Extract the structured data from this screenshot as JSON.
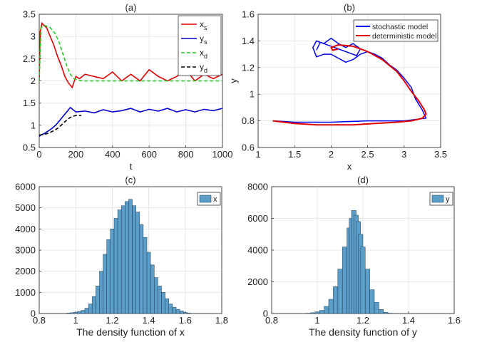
{
  "colors": {
    "xs": "#e00000",
    "ys": "#0000cc",
    "xd": "#22cc22",
    "yd": "#000000",
    "stochastic": "#0000ee",
    "deterministic": "#e00000",
    "bar_fill": "#5b9ec9",
    "bar_edge": "#1f3b55"
  },
  "chart_data": [
    {
      "type": "line",
      "panel": "(a)",
      "title": "(a)",
      "xlabel": "t",
      "ylabel": "",
      "xlim": [
        0,
        1000
      ],
      "ylim": [
        0.5,
        3.5
      ],
      "xticks": [
        "0",
        "200",
        "400",
        "600",
        "800",
        "1000"
      ],
      "yticks": [
        "0.5",
        "1",
        "1.5",
        "2",
        "2.5",
        "3",
        "3.5"
      ],
      "legend_position": "top-right",
      "series": [
        {
          "name": "x_s",
          "label_main": "x",
          "label_sub": "s",
          "style": "solid",
          "color_key": "xs",
          "x": [
            0,
            5,
            15,
            25,
            40,
            60,
            80,
            100,
            120,
            140,
            160,
            180,
            200,
            220,
            250,
            300,
            350,
            400,
            450,
            500,
            550,
            600,
            650,
            700,
            750,
            800,
            850,
            900,
            950,
            1000
          ],
          "y": [
            2.0,
            3.1,
            3.3,
            3.25,
            3.2,
            3.0,
            2.8,
            2.55,
            2.35,
            2.1,
            1.95,
            1.85,
            2.1,
            2.05,
            2.15,
            2.1,
            2.05,
            2.2,
            2.0,
            2.15,
            2.0,
            2.25,
            2.1,
            2.0,
            2.1,
            2.25,
            2.0,
            2.15,
            2.05,
            2.15
          ]
        },
        {
          "name": "y_s",
          "label_main": "y",
          "label_sub": "s",
          "style": "solid",
          "color_key": "ys",
          "x": [
            0,
            10,
            30,
            60,
            90,
            120,
            150,
            170,
            200,
            250,
            300,
            350,
            400,
            450,
            500,
            550,
            600,
            650,
            700,
            750,
            800,
            850,
            900,
            950,
            1000
          ],
          "y": [
            0.75,
            0.78,
            0.82,
            0.9,
            1.0,
            1.15,
            1.3,
            1.4,
            1.3,
            1.32,
            1.28,
            1.35,
            1.3,
            1.33,
            1.38,
            1.3,
            1.36,
            1.32,
            1.38,
            1.3,
            1.35,
            1.3,
            1.36,
            1.33,
            1.38
          ]
        },
        {
          "name": "x_d",
          "label_main": "x",
          "label_sub": "d",
          "style": "dashed",
          "color_key": "xd",
          "x": [
            0,
            10,
            30,
            60,
            90,
            110,
            130,
            150,
            170,
            190,
            210,
            240,
            280,
            350,
            450,
            600,
            800,
            1000
          ],
          "y": [
            2.0,
            3.2,
            3.25,
            3.2,
            3.05,
            2.85,
            2.6,
            2.35,
            2.15,
            2.05,
            2.02,
            2.0,
            2.0,
            2.0,
            2.0,
            2.0,
            2.0,
            2.0
          ]
        },
        {
          "name": "y_d",
          "label_main": "y",
          "label_sub": "d",
          "style": "dashed",
          "color_key": "yd",
          "x": [
            0,
            20,
            40,
            60,
            80,
            100,
            120,
            140,
            160,
            180,
            200,
            230
          ],
          "y": [
            0.78,
            0.79,
            0.81,
            0.84,
            0.88,
            0.93,
            1.0,
            1.08,
            1.15,
            1.2,
            1.22,
            1.22
          ]
        }
      ]
    },
    {
      "type": "line",
      "panel": "(b)",
      "title": "(b)",
      "xlabel": "x",
      "ylabel": "y",
      "xlim": [
        1,
        3.5
      ],
      "ylim": [
        0.6,
        1.6
      ],
      "xticks": [
        "1",
        "1.5",
        "2",
        "2.5",
        "3",
        "3.5"
      ],
      "yticks": [
        "0.6",
        "0.8",
        "1",
        "1.2",
        "1.4",
        "1.6"
      ],
      "legend_position": "top-right",
      "series": [
        {
          "name": "stochastic model",
          "color_key": "stochastic",
          "x": [
            1.22,
            1.5,
            2.0,
            2.5,
            3.0,
            3.3,
            3.25,
            3.15,
            3.1,
            3.0,
            2.9,
            2.8,
            2.7,
            2.6,
            2.5,
            2.4,
            2.3,
            2.2,
            2.1,
            2.0,
            1.9,
            1.8,
            1.75,
            1.8,
            1.9,
            2.0,
            2.1,
            2.2,
            2.3,
            2.4,
            2.35,
            2.2,
            2.0,
            1.85,
            1.8
          ],
          "y": [
            0.8,
            0.79,
            0.79,
            0.8,
            0.8,
            0.82,
            0.88,
            0.97,
            1.05,
            1.12,
            1.18,
            1.22,
            1.27,
            1.3,
            1.32,
            1.3,
            1.26,
            1.24,
            1.27,
            1.3,
            1.3,
            1.28,
            1.35,
            1.4,
            1.38,
            1.42,
            1.38,
            1.35,
            1.38,
            1.34,
            1.29,
            1.32,
            1.36,
            1.39,
            1.33
          ]
        },
        {
          "name": "deterministic model",
          "color_key": "deterministic",
          "x": [
            1.2,
            1.5,
            1.8,
            2.0,
            2.3,
            2.6,
            2.9,
            3.1,
            3.25,
            3.3,
            3.28,
            3.2,
            3.1,
            3.0,
            2.9,
            2.7,
            2.5,
            2.3,
            2.1,
            2.0,
            2.02,
            2.1
          ],
          "y": [
            0.8,
            0.78,
            0.77,
            0.77,
            0.77,
            0.78,
            0.79,
            0.8,
            0.82,
            0.85,
            0.88,
            0.95,
            1.02,
            1.1,
            1.17,
            1.26,
            1.32,
            1.36,
            1.37,
            1.35,
            1.33,
            1.34
          ]
        }
      ]
    },
    {
      "type": "bar",
      "panel": "(c)",
      "title": "(c)",
      "xlabel": "The density function of x",
      "ylabel": "",
      "legend": "x",
      "legend_position": "top-right",
      "xlim": [
        0.8,
        1.8
      ],
      "ylim": [
        0,
        6000
      ],
      "xticks": [
        "0.8",
        "1",
        "1.2",
        "1.4",
        "1.6",
        "1.8"
      ],
      "yticks": [
        "0",
        "1000",
        "2000",
        "3000",
        "4000",
        "5000",
        "6000"
      ],
      "bin_width": 0.01,
      "categories": [
        0.96,
        0.98,
        1.0,
        1.02,
        1.04,
        1.06,
        1.08,
        1.1,
        1.12,
        1.14,
        1.16,
        1.18,
        1.2,
        1.22,
        1.24,
        1.26,
        1.28,
        1.3,
        1.32,
        1.34,
        1.36,
        1.38,
        1.4,
        1.42,
        1.44,
        1.46,
        1.48,
        1.5,
        1.52,
        1.54,
        1.56,
        1.58,
        1.6,
        1.62
      ],
      "values": [
        20,
        40,
        60,
        100,
        150,
        250,
        450,
        800,
        1300,
        2000,
        2800,
        3500,
        4000,
        4500,
        4900,
        5100,
        5300,
        5400,
        5100,
        4800,
        4200,
        3600,
        2900,
        2300,
        1700,
        1300,
        1000,
        700,
        450,
        300,
        200,
        120,
        60,
        20
      ]
    },
    {
      "type": "bar",
      "panel": "(d)",
      "title": "(d)",
      "xlabel": "The density function of y",
      "ylabel": "",
      "legend": "y",
      "legend_position": "top-right",
      "xlim": [
        0.8,
        1.6
      ],
      "ylim": [
        0,
        8000
      ],
      "xticks": [
        "0.8",
        "1",
        "1.2",
        "1.4",
        "1.6"
      ],
      "yticks": [
        "0",
        "2000",
        "4000",
        "6000",
        "8000"
      ],
      "bin_width": 0.005,
      "categories": [
        0.96,
        0.98,
        1.0,
        1.02,
        1.04,
        1.06,
        1.08,
        1.1,
        1.12,
        1.14,
        1.15,
        1.16,
        1.17,
        1.18,
        1.19,
        1.2,
        1.22,
        1.24,
        1.26,
        1.28,
        1.3,
        1.32
      ],
      "values": [
        20,
        50,
        100,
        200,
        450,
        900,
        1700,
        2800,
        4200,
        5400,
        6000,
        6500,
        6200,
        5800,
        5000,
        4200,
        2800,
        1500,
        700,
        250,
        80,
        20
      ]
    }
  ]
}
